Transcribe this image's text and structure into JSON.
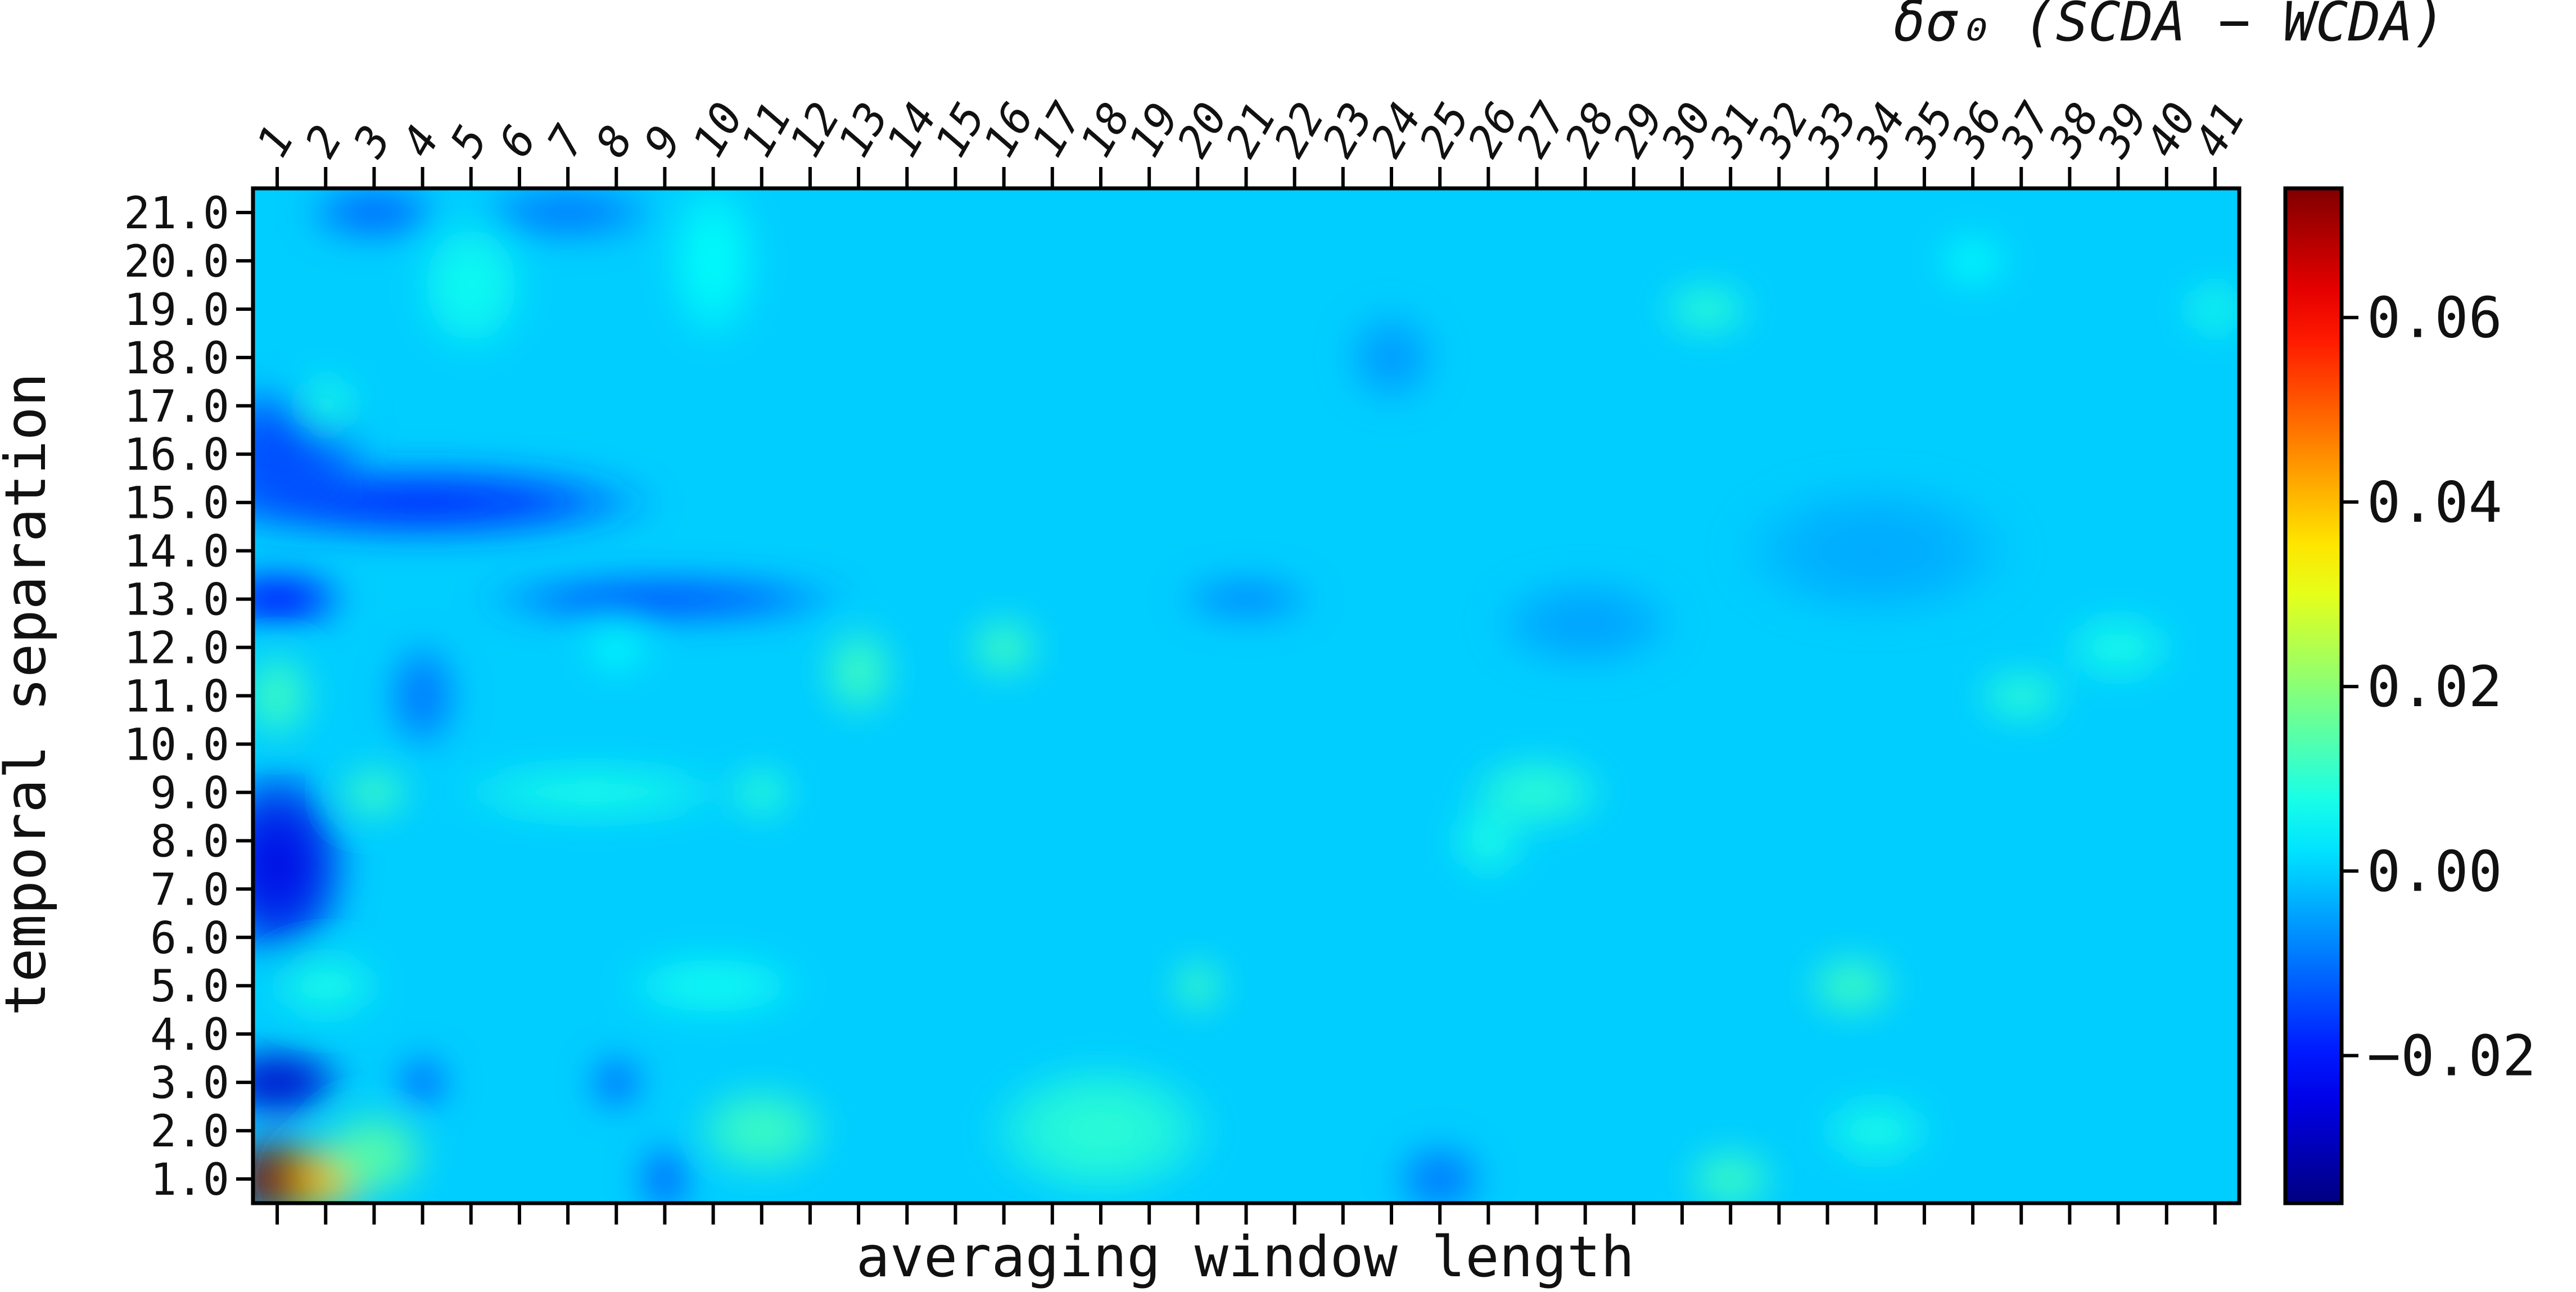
{
  "chart_data": {
    "type": "heatmap",
    "title": "δσ₀ (SCDA − WCDA)",
    "xlabel": "averaging window length",
    "ylabel": "temporal separation",
    "x_ticks": [
      "1",
      "2",
      "3",
      "4",
      "5",
      "6",
      "7",
      "8",
      "9",
      "10",
      "11",
      "12",
      "13",
      "14",
      "15",
      "16",
      "17",
      "18",
      "19",
      "20",
      "21",
      "22",
      "23",
      "24",
      "25",
      "26",
      "27",
      "28",
      "29",
      "30",
      "31",
      "32",
      "33",
      "34",
      "35",
      "36",
      "37",
      "38",
      "39",
      "40",
      "41"
    ],
    "y_ticks": [
      "1.0",
      "2.0",
      "3.0",
      "4.0",
      "5.0",
      "6.0",
      "7.0",
      "8.0",
      "9.0",
      "10.0",
      "11.0",
      "12.0",
      "13.0",
      "14.0",
      "15.0",
      "16.0",
      "17.0",
      "18.0",
      "19.0",
      "20.0",
      "21.0"
    ],
    "colorbar": {
      "colormap": "jet",
      "vmin": -0.036,
      "vmax": 0.074,
      "ticks": [
        "0.06",
        "0.04",
        "0.02",
        "0.00",
        "−0.02"
      ],
      "tick_values": [
        0.06,
        0.04,
        0.02,
        0.0,
        -0.02
      ]
    },
    "base_value": 0.0,
    "features": [
      {
        "x": 1,
        "y": 1,
        "value": 0.074,
        "rx": 1.2,
        "ry": 1.0
      },
      {
        "x": 2,
        "y": 1,
        "value": 0.04,
        "rx": 1.0,
        "ry": 0.8
      },
      {
        "x": 3,
        "y": 1.5,
        "value": 0.015,
        "rx": 1.2,
        "ry": 1.0
      },
      {
        "x": 1,
        "y": 3,
        "value": -0.028,
        "rx": 1.5,
        "ry": 0.8
      },
      {
        "x": 1,
        "y": 7.5,
        "value": -0.025,
        "rx": 1.6,
        "ry": 2.2
      },
      {
        "x": 1,
        "y": 11,
        "value": 0.012,
        "rx": 0.8,
        "ry": 1.0
      },
      {
        "x": 1,
        "y": 13,
        "value": -0.022,
        "rx": 1.5,
        "ry": 0.6
      },
      {
        "x": 4,
        "y": 15,
        "value": -0.018,
        "rx": 5.0,
        "ry": 0.8
      },
      {
        "x": 9,
        "y": 13,
        "value": -0.015,
        "rx": 4.0,
        "ry": 0.5
      },
      {
        "x": 1,
        "y": 16,
        "value": -0.015,
        "rx": 2.0,
        "ry": 1.5
      },
      {
        "x": 2,
        "y": 17,
        "value": 0.008,
        "rx": 0.7,
        "ry": 0.7
      },
      {
        "x": 5,
        "y": 19.5,
        "value": 0.007,
        "rx": 1.2,
        "ry": 1.5
      },
      {
        "x": 10,
        "y": 20,
        "value": 0.006,
        "rx": 1.0,
        "ry": 1.8
      },
      {
        "x": 3,
        "y": 9,
        "value": 0.012,
        "rx": 0.8,
        "ry": 0.6
      },
      {
        "x": 7.5,
        "y": 9,
        "value": 0.008,
        "rx": 3.0,
        "ry": 0.6
      },
      {
        "x": 11,
        "y": 9,
        "value": 0.01,
        "rx": 0.7,
        "ry": 0.6
      },
      {
        "x": 2,
        "y": 5,
        "value": 0.008,
        "rx": 1.2,
        "ry": 0.7
      },
      {
        "x": 10,
        "y": 5,
        "value": 0.007,
        "rx": 2.0,
        "ry": 0.7
      },
      {
        "x": 11,
        "y": 2,
        "value": 0.012,
        "rx": 1.5,
        "ry": 1.0
      },
      {
        "x": 18,
        "y": 2,
        "value": 0.01,
        "rx": 2.5,
        "ry": 1.5
      },
      {
        "x": 13,
        "y": 11.5,
        "value": 0.012,
        "rx": 0.8,
        "ry": 1.0
      },
      {
        "x": 16,
        "y": 12,
        "value": 0.012,
        "rx": 0.8,
        "ry": 0.7
      },
      {
        "x": 8,
        "y": 12,
        "value": 0.006,
        "rx": 0.7,
        "ry": 0.6
      },
      {
        "x": 27,
        "y": 9,
        "value": 0.01,
        "rx": 1.5,
        "ry": 0.8
      },
      {
        "x": 26,
        "y": 8,
        "value": 0.008,
        "rx": 0.8,
        "ry": 0.8
      },
      {
        "x": 33.5,
        "y": 5,
        "value": 0.012,
        "rx": 1.0,
        "ry": 0.7
      },
      {
        "x": 31,
        "y": 1,
        "value": 0.012,
        "rx": 1.0,
        "ry": 0.7
      },
      {
        "x": 34,
        "y": 2,
        "value": 0.008,
        "rx": 1.2,
        "ry": 0.7
      },
      {
        "x": 30.5,
        "y": 19,
        "value": 0.01,
        "rx": 1.0,
        "ry": 0.6
      },
      {
        "x": 36,
        "y": 20,
        "value": 0.006,
        "rx": 0.8,
        "ry": 0.6
      },
      {
        "x": 41,
        "y": 19,
        "value": 0.008,
        "rx": 0.7,
        "ry": 0.6
      },
      {
        "x": 37,
        "y": 11,
        "value": 0.01,
        "rx": 1.0,
        "ry": 0.6
      },
      {
        "x": 39,
        "y": 12,
        "value": 0.008,
        "rx": 1.2,
        "ry": 0.7
      },
      {
        "x": 20,
        "y": 5,
        "value": 0.012,
        "rx": 0.6,
        "ry": 0.6
      },
      {
        "x": 9,
        "y": 1,
        "value": -0.012,
        "rx": 0.6,
        "ry": 0.8
      },
      {
        "x": 25,
        "y": 1,
        "value": -0.01,
        "rx": 1.0,
        "ry": 0.8
      },
      {
        "x": 28,
        "y": 12.5,
        "value": -0.005,
        "rx": 2.0,
        "ry": 1.0
      },
      {
        "x": 21,
        "y": 13,
        "value": -0.008,
        "rx": 1.5,
        "ry": 0.5
      },
      {
        "x": 24,
        "y": 18,
        "value": -0.006,
        "rx": 1.0,
        "ry": 1.0
      },
      {
        "x": 8,
        "y": 3,
        "value": -0.012,
        "rx": 0.6,
        "ry": 0.6
      },
      {
        "x": 4,
        "y": 3,
        "value": -0.012,
        "rx": 0.6,
        "ry": 0.6
      },
      {
        "x": 4,
        "y": 11,
        "value": -0.01,
        "rx": 0.8,
        "ry": 1.2
      },
      {
        "x": 3,
        "y": 21,
        "value": -0.012,
        "rx": 1.5,
        "ry": 0.6
      },
      {
        "x": 7,
        "y": 21,
        "value": -0.01,
        "rx": 2.0,
        "ry": 0.6
      },
      {
        "x": 34,
        "y": 14,
        "value": -0.004,
        "rx": 3.0,
        "ry": 1.5
      }
    ]
  }
}
